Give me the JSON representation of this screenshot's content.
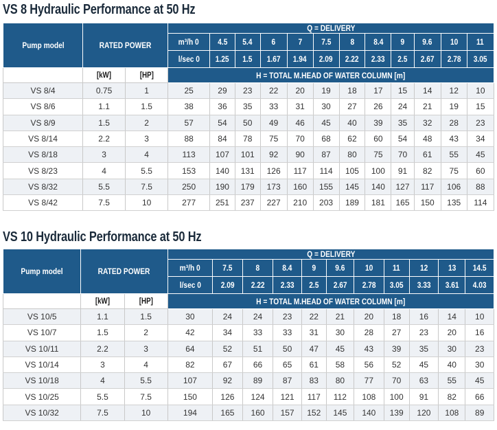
{
  "vs8": {
    "title": "VS 8 Hydraulic Performance at 50 Hz",
    "pump_model_label": "Pump model",
    "rated_power_label": "RATED POWER",
    "delivery_label": "Q = DELIVERY",
    "m3h_label": "m³/h 0",
    "ls_label": "l/sec 0",
    "kw_label": "[kW]",
    "hp_label": "[HP]",
    "head_label": "H = TOTAL M.HEAD OF WATER COLUMN [m]",
    "m3h": [
      "4.5",
      "5.4",
      "6",
      "7",
      "7.5",
      "8",
      "8.4",
      "9",
      "9.6",
      "10",
      "11"
    ],
    "ls": [
      "1.25",
      "1.5",
      "1.67",
      "1.94",
      "2.09",
      "2.22",
      "2.33",
      "2.5",
      "2.67",
      "2.78",
      "3.05"
    ],
    "rows": [
      {
        "model": "VS 8/4",
        "kw": "0.75",
        "hp": "1",
        "h": [
          "25",
          "29",
          "23",
          "22",
          "20",
          "19",
          "18",
          "17",
          "15",
          "14",
          "12",
          "10"
        ]
      },
      {
        "model": "VS 8/6",
        "kw": "1.1",
        "hp": "1.5",
        "h": [
          "38",
          "36",
          "35",
          "33",
          "31",
          "30",
          "27",
          "26",
          "24",
          "21",
          "19",
          "15"
        ]
      },
      {
        "model": "VS 8/9",
        "kw": "1.5",
        "hp": "2",
        "h": [
          "57",
          "54",
          "50",
          "49",
          "46",
          "45",
          "40",
          "39",
          "35",
          "32",
          "28",
          "23"
        ]
      },
      {
        "model": "VS 8/14",
        "kw": "2.2",
        "hp": "3",
        "h": [
          "88",
          "84",
          "78",
          "75",
          "70",
          "68",
          "62",
          "60",
          "54",
          "48",
          "43",
          "34"
        ]
      },
      {
        "model": "VS 8/18",
        "kw": "3",
        "hp": "4",
        "h": [
          "113",
          "107",
          "101",
          "92",
          "90",
          "87",
          "80",
          "75",
          "70",
          "61",
          "55",
          "45"
        ]
      },
      {
        "model": "VS 8/23",
        "kw": "4",
        "hp": "5.5",
        "h": [
          "153",
          "140",
          "131",
          "126",
          "117",
          "114",
          "105",
          "100",
          "91",
          "82",
          "75",
          "60"
        ]
      },
      {
        "model": "VS 8/32",
        "kw": "5.5",
        "hp": "7.5",
        "h": [
          "250",
          "190",
          "179",
          "173",
          "160",
          "155",
          "145",
          "140",
          "127",
          "117",
          "106",
          "88"
        ]
      },
      {
        "model": "VS 8/42",
        "kw": "7.5",
        "hp": "10",
        "h": [
          "277",
          "251",
          "237",
          "227",
          "210",
          "203",
          "189",
          "181",
          "165",
          "150",
          "135",
          "114"
        ]
      }
    ]
  },
  "vs10": {
    "title": "VS 10 Hydraulic Performance at 50 Hz",
    "pump_model_label": "Pump model",
    "rated_power_label": "RATED POWER",
    "delivery_label": "Q = DELIVERY",
    "m3h_label": "m³/h 0",
    "ls_label": "l/sec 0",
    "kw_label": "[kW]",
    "hp_label": "[HP]",
    "head_label": "H = TOTAL M.HEAD OF WATER COLUMN [m]",
    "m3h": [
      "7.5",
      "8",
      "8.4",
      "9",
      "9.6",
      "10",
      "11",
      "12",
      "13",
      "14.5"
    ],
    "ls": [
      "2.09",
      "2.22",
      "2.33",
      "2.5",
      "2.67",
      "2.78",
      "3.05",
      "3.33",
      "3.61",
      "4.03"
    ],
    "rows": [
      {
        "model": "VS 10/5",
        "kw": "1.1",
        "hp": "1.5",
        "h": [
          "30",
          "24",
          "24",
          "23",
          "22",
          "21",
          "20",
          "18",
          "16",
          "14",
          "10"
        ]
      },
      {
        "model": "VS 10/7",
        "kw": "1.5",
        "hp": "2",
        "h": [
          "42",
          "34",
          "33",
          "33",
          "31",
          "30",
          "28",
          "27",
          "23",
          "20",
          "16"
        ]
      },
      {
        "model": "VS 10/11",
        "kw": "2.2",
        "hp": "3",
        "h": [
          "64",
          "52",
          "51",
          "50",
          "47",
          "45",
          "43",
          "39",
          "35",
          "30",
          "23"
        ]
      },
      {
        "model": "VS 10/14",
        "kw": "3",
        "hp": "4",
        "h": [
          "82",
          "67",
          "66",
          "65",
          "61",
          "58",
          "56",
          "52",
          "45",
          "40",
          "30"
        ]
      },
      {
        "model": "VS 10/18",
        "kw": "4",
        "hp": "5.5",
        "h": [
          "107",
          "92",
          "89",
          "87",
          "83",
          "80",
          "77",
          "70",
          "63",
          "55",
          "45"
        ]
      },
      {
        "model": "VS 10/25",
        "kw": "5.5",
        "hp": "7.5",
        "h": [
          "150",
          "126",
          "124",
          "121",
          "117",
          "112",
          "108",
          "100",
          "91",
          "82",
          "66"
        ]
      },
      {
        "model": "VS 10/32",
        "kw": "7.5",
        "hp": "10",
        "h": [
          "194",
          "165",
          "160",
          "157",
          "152",
          "145",
          "140",
          "139",
          "120",
          "108",
          "89"
        ]
      }
    ]
  }
}
